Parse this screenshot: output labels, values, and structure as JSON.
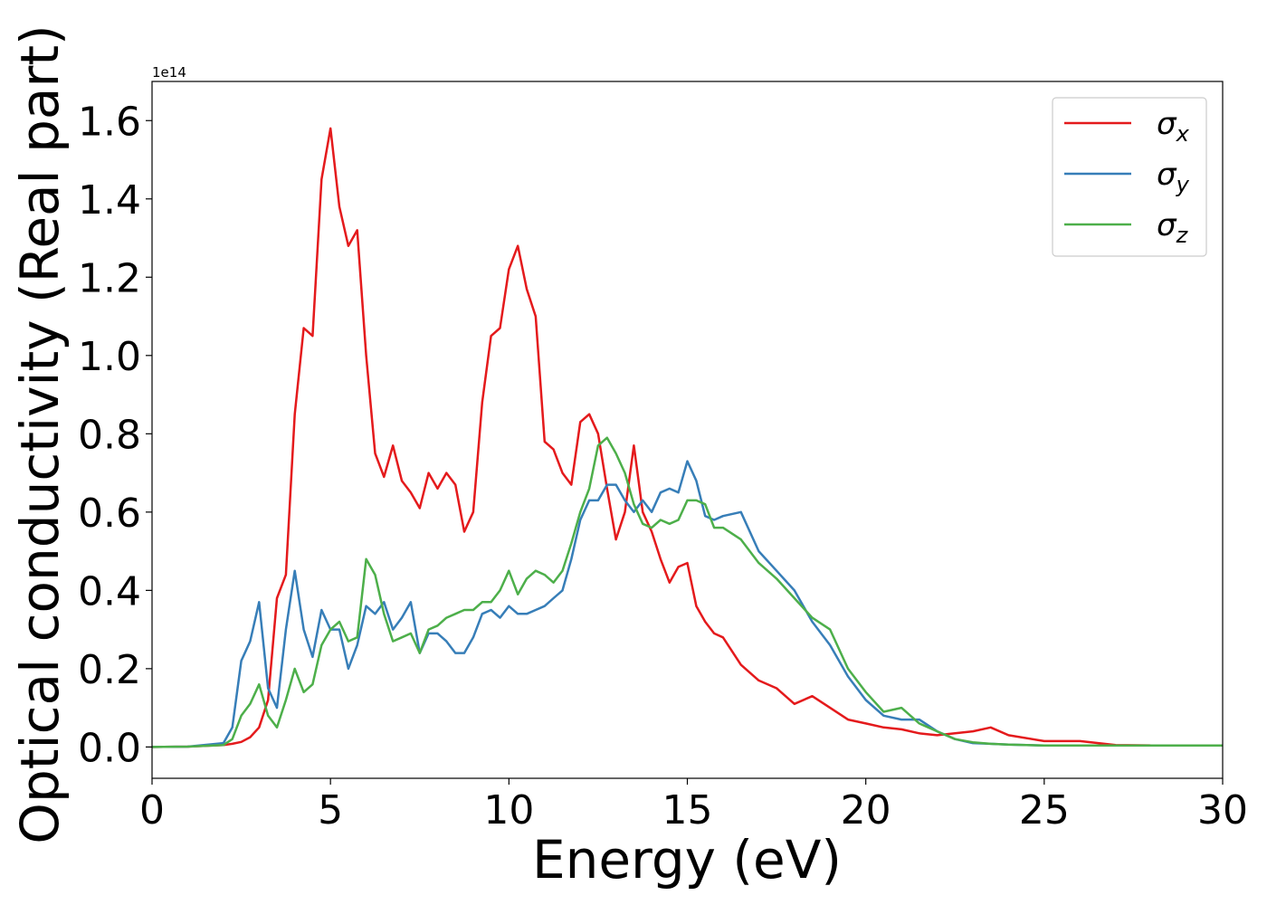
{
  "chart_data": {
    "type": "line",
    "xlabel": "Energy (eV)",
    "ylabel": "Optical conductivity (Real part)",
    "offset_label": "1e14",
    "x": [
      0,
      1,
      2,
      2.25,
      2.5,
      2.75,
      3,
      3.25,
      3.5,
      3.75,
      4,
      4.25,
      4.5,
      4.75,
      5,
      5.25,
      5.5,
      5.75,
      6,
      6.25,
      6.5,
      6.75,
      7,
      7.25,
      7.5,
      7.75,
      8,
      8.25,
      8.5,
      8.75,
      9,
      9.25,
      9.5,
      9.75,
      10,
      10.25,
      10.5,
      10.75,
      11,
      11.25,
      11.5,
      11.75,
      12,
      12.25,
      12.5,
      12.75,
      13,
      13.25,
      13.5,
      13.75,
      14,
      14.25,
      14.5,
      14.75,
      15,
      15.25,
      15.5,
      15.75,
      16,
      16.5,
      17,
      17.5,
      18,
      18.5,
      19,
      19.5,
      20,
      20.5,
      21,
      21.5,
      22,
      22.5,
      23,
      23.5,
      24,
      25,
      26,
      27,
      28,
      29,
      30
    ],
    "series": [
      {
        "name": "σx",
        "color": "#e41a1c",
        "values": [
          0,
          0.001,
          0.005,
          0.008,
          0.013,
          0.025,
          0.05,
          0.12,
          0.38,
          0.44,
          0.85,
          1.07,
          1.05,
          1.45,
          1.58,
          1.38,
          1.28,
          1.32,
          1.0,
          0.75,
          0.69,
          0.77,
          0.68,
          0.65,
          0.61,
          0.7,
          0.66,
          0.7,
          0.67,
          0.55,
          0.6,
          0.88,
          1.05,
          1.07,
          1.22,
          1.28,
          1.17,
          1.1,
          0.78,
          0.76,
          0.7,
          0.67,
          0.83,
          0.85,
          0.8,
          0.66,
          0.53,
          0.6,
          0.77,
          0.6,
          0.55,
          0.48,
          0.42,
          0.46,
          0.47,
          0.36,
          0.32,
          0.29,
          0.28,
          0.21,
          0.17,
          0.15,
          0.11,
          0.13,
          0.1,
          0.07,
          0.06,
          0.05,
          0.045,
          0.035,
          0.03,
          0.035,
          0.04,
          0.05,
          0.03,
          0.015,
          0.015,
          0.005,
          0.004,
          0.004,
          0.004
        ]
      },
      {
        "name": "σy",
        "color": "#377eb8",
        "values": [
          0,
          0.001,
          0.01,
          0.05,
          0.22,
          0.27,
          0.37,
          0.15,
          0.1,
          0.3,
          0.45,
          0.3,
          0.23,
          0.35,
          0.3,
          0.3,
          0.2,
          0.26,
          0.36,
          0.34,
          0.37,
          0.3,
          0.33,
          0.37,
          0.24,
          0.29,
          0.29,
          0.27,
          0.24,
          0.24,
          0.28,
          0.34,
          0.35,
          0.33,
          0.36,
          0.34,
          0.34,
          0.35,
          0.36,
          0.38,
          0.4,
          0.48,
          0.58,
          0.63,
          0.63,
          0.67,
          0.67,
          0.63,
          0.6,
          0.63,
          0.6,
          0.65,
          0.66,
          0.65,
          0.73,
          0.68,
          0.59,
          0.58,
          0.59,
          0.6,
          0.5,
          0.45,
          0.4,
          0.32,
          0.26,
          0.18,
          0.12,
          0.08,
          0.07,
          0.07,
          0.04,
          0.02,
          0.01,
          0.008,
          0.006,
          0.004,
          0.004,
          0.004,
          0.004,
          0.004,
          0.004
        ]
      },
      {
        "name": "σz",
        "color": "#4daf4a",
        "values": [
          0,
          0.001,
          0.005,
          0.02,
          0.08,
          0.11,
          0.16,
          0.08,
          0.05,
          0.12,
          0.2,
          0.14,
          0.16,
          0.26,
          0.3,
          0.32,
          0.27,
          0.28,
          0.48,
          0.44,
          0.34,
          0.27,
          0.28,
          0.29,
          0.24,
          0.3,
          0.31,
          0.33,
          0.34,
          0.35,
          0.35,
          0.37,
          0.37,
          0.4,
          0.45,
          0.39,
          0.43,
          0.45,
          0.44,
          0.42,
          0.45,
          0.52,
          0.6,
          0.66,
          0.77,
          0.79,
          0.75,
          0.7,
          0.62,
          0.57,
          0.56,
          0.58,
          0.57,
          0.58,
          0.63,
          0.63,
          0.62,
          0.56,
          0.56,
          0.53,
          0.47,
          0.43,
          0.38,
          0.33,
          0.3,
          0.2,
          0.14,
          0.09,
          0.1,
          0.06,
          0.04,
          0.02,
          0.012,
          0.008,
          0.006,
          0.004,
          0.004,
          0.004,
          0.004,
          0.004,
          0.004
        ]
      }
    ],
    "xlim": [
      0,
      30
    ],
    "xticks": [
      0,
      5,
      10,
      15,
      20,
      25,
      30
    ],
    "ylim": [
      -0.08,
      1.7
    ],
    "yticks": [
      {
        "value": 0,
        "label": "0.0"
      },
      0.2,
      0.4,
      0.6,
      0.8,
      {
        "value": 1,
        "label": "1.0"
      },
      1.2,
      1.4,
      1.6
    ],
    "grid": false,
    "legend": "upper right"
  }
}
